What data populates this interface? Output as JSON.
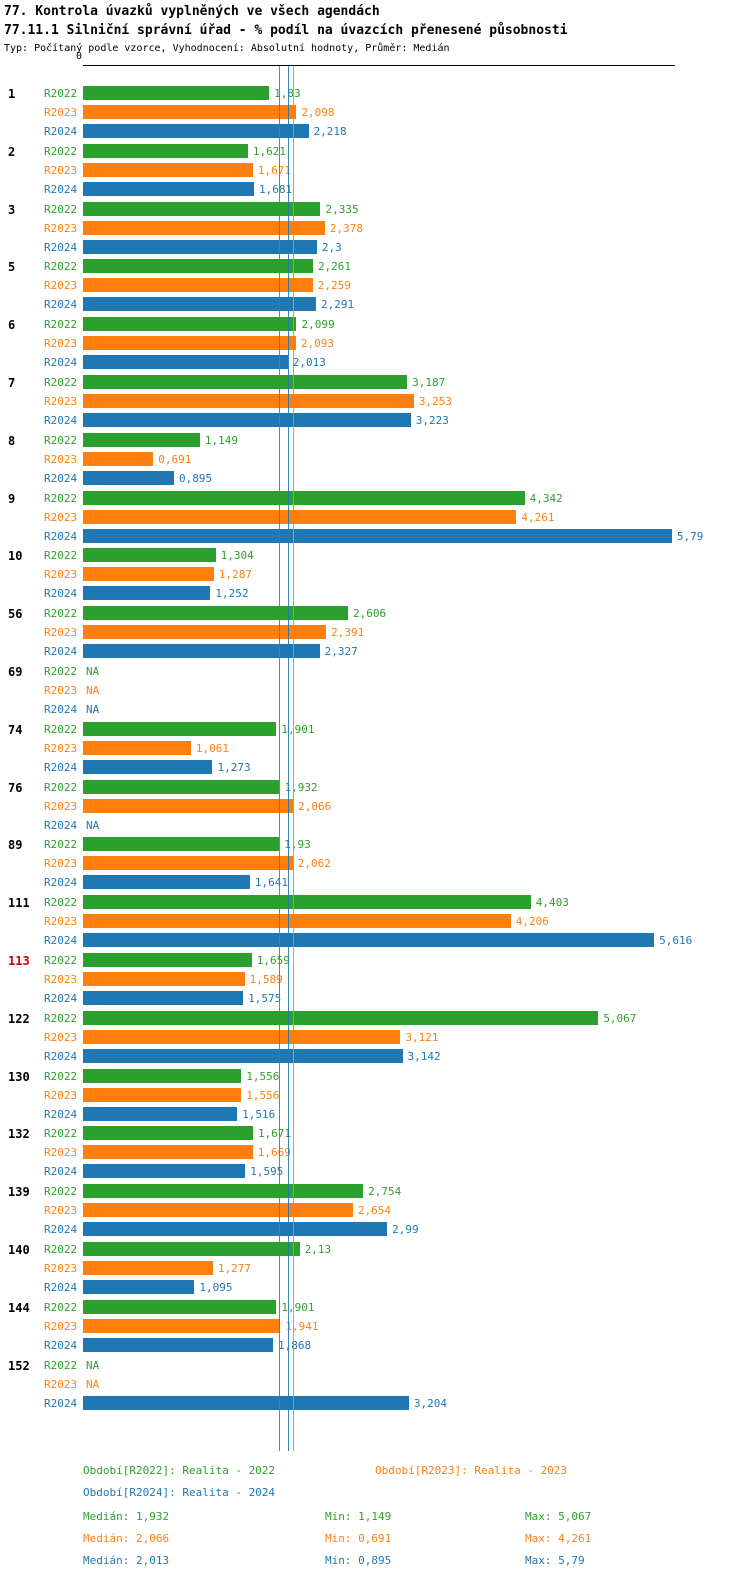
{
  "header": {
    "title": "77. Kontrola úvazků vyplněných ve všech agendách",
    "subtitle": "77.11.1 Silniční správní úřad - % podíl na úvazcích přenesené působnosti",
    "meta": "Typ: Počítaný podle vzorce, Vyhodnocení: Absolutní hodnoty, Průměr: Medián"
  },
  "chart_data": {
    "type": "bar",
    "orientation": "horizontal",
    "x_axis": {
      "origin_label": "0",
      "min": 0,
      "max": 5.82
    },
    "series": [
      {
        "name": "R2022",
        "color": "#2ca02c"
      },
      {
        "name": "R2023",
        "color": "#ff7f0e"
      },
      {
        "name": "R2024",
        "color": "#1f77b4"
      }
    ],
    "groups": [
      {
        "id": "1",
        "values": [
          "1,83",
          "2,098",
          "2,218"
        ]
      },
      {
        "id": "2",
        "values": [
          "1,621",
          "1,671",
          "1,681"
        ]
      },
      {
        "id": "3",
        "values": [
          "2,335",
          "2,378",
          "2,3"
        ]
      },
      {
        "id": "5",
        "values": [
          "2,261",
          "2,259",
          "2,291"
        ]
      },
      {
        "id": "6",
        "values": [
          "2,099",
          "2,093",
          "2,013"
        ]
      },
      {
        "id": "7",
        "values": [
          "3,187",
          "3,253",
          "3,223"
        ]
      },
      {
        "id": "8",
        "values": [
          "1,149",
          "0,691",
          "0,895"
        ]
      },
      {
        "id": "9",
        "values": [
          "4,342",
          "4,261",
          "5,79"
        ]
      },
      {
        "id": "10",
        "values": [
          "1,304",
          "1,287",
          "1,252"
        ]
      },
      {
        "id": "56",
        "values": [
          "2,606",
          "2,391",
          "2,327"
        ]
      },
      {
        "id": "69",
        "values": [
          "NA",
          "NA",
          "NA"
        ]
      },
      {
        "id": "74",
        "values": [
          "1,901",
          "1,061",
          "1,273"
        ]
      },
      {
        "id": "76",
        "values": [
          "1,932",
          "2,066",
          "NA"
        ]
      },
      {
        "id": "89",
        "values": [
          "1,93",
          "2,062",
          "1,641"
        ]
      },
      {
        "id": "111",
        "values": [
          "4,403",
          "4,206",
          "5,616"
        ]
      },
      {
        "id": "113",
        "highlight": true,
        "values": [
          "1,659",
          "1,589",
          "1,575"
        ]
      },
      {
        "id": "122",
        "values": [
          "5,067",
          "3,121",
          "3,142"
        ]
      },
      {
        "id": "130",
        "values": [
          "1,556",
          "1,556",
          "1,516"
        ]
      },
      {
        "id": "132",
        "values": [
          "1,671",
          "1,669",
          "1,595"
        ]
      },
      {
        "id": "139",
        "values": [
          "2,754",
          "2,654",
          "2,99"
        ]
      },
      {
        "id": "140",
        "values": [
          "2,13",
          "1,277",
          "1,095"
        ]
      },
      {
        "id": "144",
        "values": [
          "1,901",
          "1,941",
          "1,868"
        ]
      },
      {
        "id": "152",
        "values": [
          "NA",
          "NA",
          "3,204"
        ]
      }
    ],
    "median_lines": [
      1.932,
      2.066,
      2.013
    ]
  },
  "legend": {
    "r2022": "Období[R2022]: Realita - 2022",
    "r2023": "Období[R2023]: Realita - 2023",
    "r2024": "Období[R2024]: Realita - 2024"
  },
  "stats": {
    "r2022": {
      "median": "Medián: 1,932",
      "min": "Min: 1,149",
      "max": "Max: 5,067"
    },
    "r2023": {
      "median": "Medián: 2,066",
      "min": "Min: 0,691",
      "max": "Max: 4,261"
    },
    "r2024": {
      "median": "Medián: 2,013",
      "min": "Min: 0,895",
      "max": "Max: 5,79"
    }
  },
  "highlight_color": "#cc0000"
}
